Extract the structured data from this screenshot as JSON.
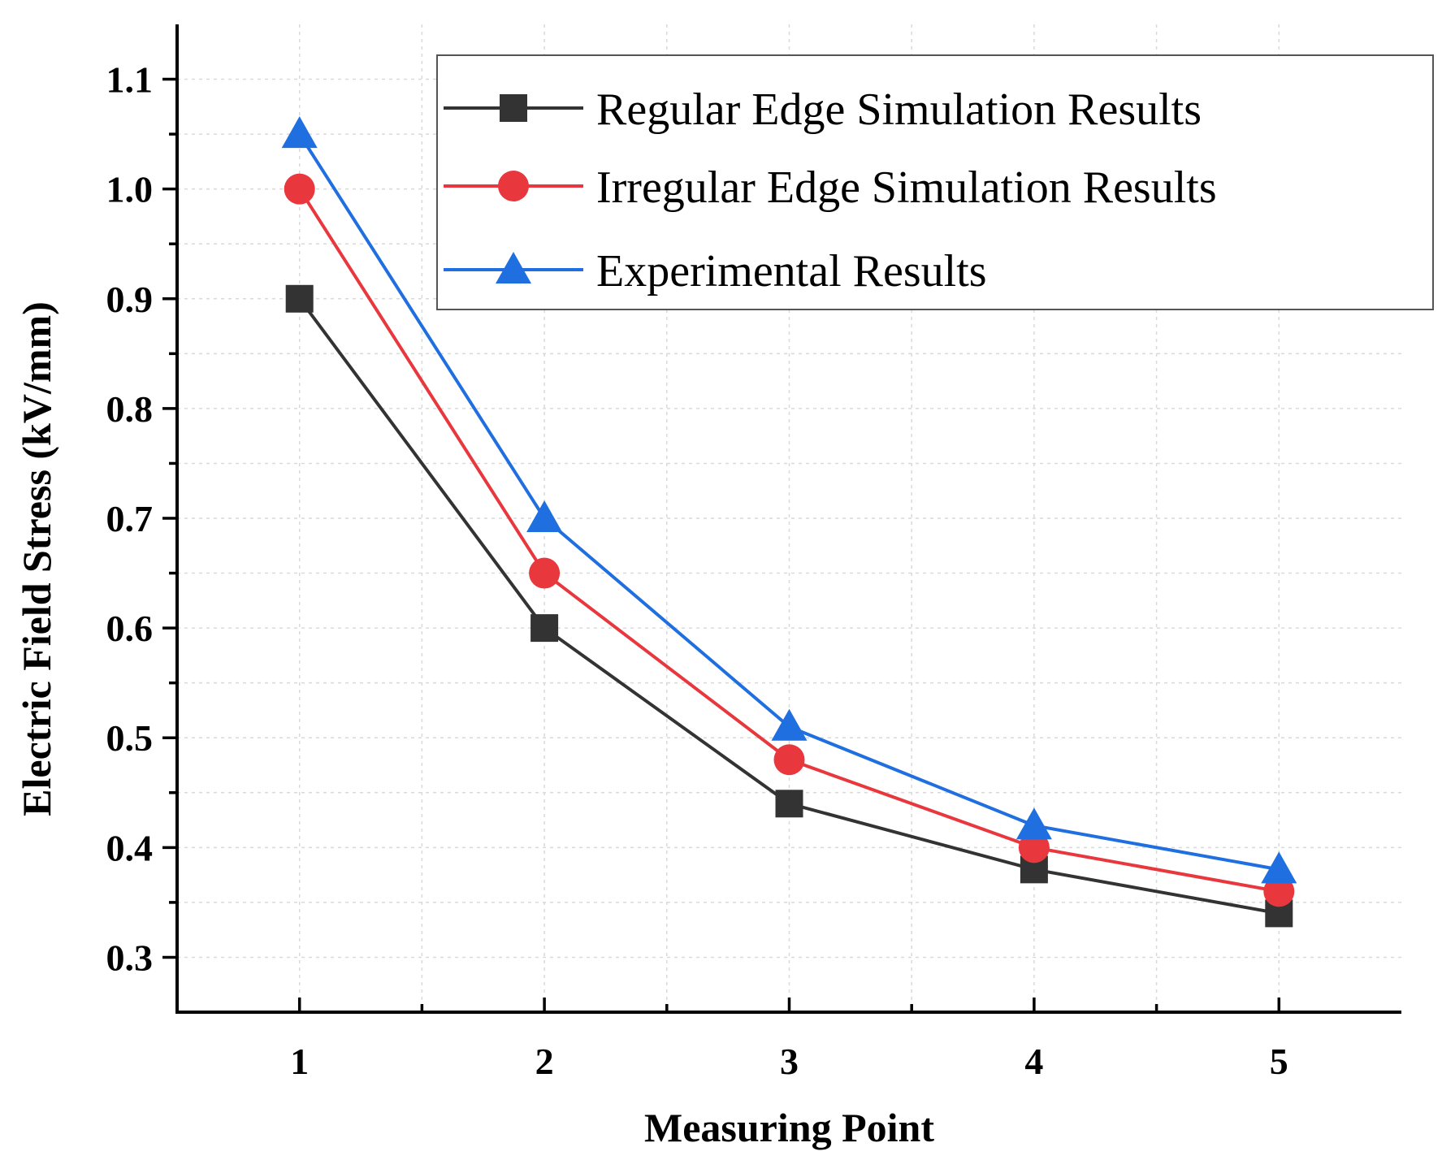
{
  "chart_data": {
    "type": "line",
    "title": "",
    "xlabel": "Measuring Point",
    "ylabel": "Electric Field Stress (kV/mm)",
    "categories": [
      1,
      2,
      3,
      4,
      5
    ],
    "xlim": [
      0.5,
      5.5
    ],
    "ylim": [
      0.25,
      1.15
    ],
    "x_ticks": [
      "1",
      "2",
      "3",
      "4",
      "5"
    ],
    "y_ticks": [
      "0.3",
      "0.4",
      "0.5",
      "0.6",
      "0.7",
      "0.8",
      "0.9",
      "1.0",
      "1.1"
    ],
    "grid": true,
    "legend_position": "top-right",
    "series": [
      {
        "name": "Regular Edge Simulation Results",
        "marker": "square",
        "color": "#333333",
        "values": [
          0.9,
          0.6,
          0.44,
          0.38,
          0.34
        ]
      },
      {
        "name": "Irregular Edge Simulation Results",
        "marker": "circle",
        "color": "#e8383d",
        "values": [
          1.0,
          0.65,
          0.48,
          0.4,
          0.36
        ]
      },
      {
        "name": "Experimental Results",
        "marker": "triangle",
        "color": "#1f6fe0",
        "values": [
          1.05,
          0.7,
          0.51,
          0.42,
          0.38
        ]
      }
    ]
  }
}
